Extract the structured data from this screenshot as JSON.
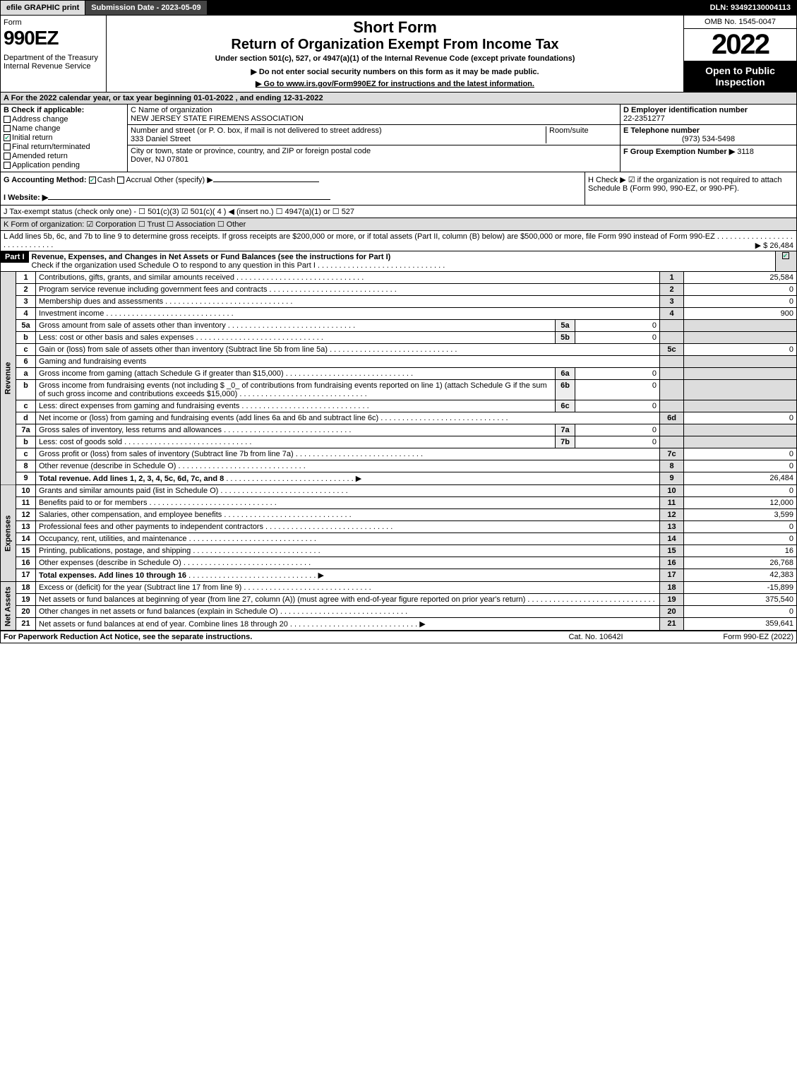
{
  "topbar": {
    "efile": "efile GRAPHIC print",
    "subdate": "Submission Date - 2023-05-09",
    "dln": "DLN: 93492130004113"
  },
  "header": {
    "form_label": "Form",
    "form_no": "990EZ",
    "dept": "Department of the Treasury\nInternal Revenue Service",
    "title1": "Short Form",
    "title2": "Return of Organization Exempt From Income Tax",
    "subtitle": "Under section 501(c), 527, or 4947(a)(1) of the Internal Revenue Code (except private foundations)",
    "note1": "▶ Do not enter social security numbers on this form as it may be made public.",
    "note2": "▶ Go to www.irs.gov/Form990EZ for instructions and the latest information.",
    "omb": "OMB No. 1545-0047",
    "year": "2022",
    "open": "Open to Public Inspection"
  },
  "A": "A  For the 2022 calendar year, or tax year beginning 01-01-2022 , and ending 12-31-2022",
  "B": {
    "label": "B  Check if applicable:",
    "items": [
      "Address change",
      "Name change",
      "Initial return",
      "Final return/terminated",
      "Amended return",
      "Application pending"
    ],
    "checked": [
      false,
      false,
      true,
      false,
      false,
      false
    ]
  },
  "C": {
    "label": "C Name of organization",
    "name": "NEW JERSEY STATE FIREMENS ASSOCIATION",
    "addr_label": "Number and street (or P. O. box, if mail is not delivered to street address)",
    "addr": "333 Daniel Street",
    "room_label": "Room/suite",
    "city_label": "City or town, state or province, country, and ZIP or foreign postal code",
    "city": "Dover, NJ  07801"
  },
  "D": {
    "label": "D Employer identification number",
    "value": "22-2351277"
  },
  "E": {
    "label": "E Telephone number",
    "value": "(973) 534-5498"
  },
  "F": {
    "label": "F Group Exemption Number  ▶",
    "value": "3118"
  },
  "G": {
    "label": "G Accounting Method:",
    "cash": "Cash",
    "accrual": "Accrual",
    "other": "Other (specify) ▶"
  },
  "H": "H   Check ▶ ☑ if the organization is not required to attach Schedule B (Form 990, 990-EZ, or 990-PF).",
  "I": "I Website: ▶",
  "J": "J Tax-exempt status (check only one) - ☐ 501(c)(3) ☑ 501(c)( 4 ) ◀ (insert no.) ☐ 4947(a)(1) or ☐ 527",
  "K": "K Form of organization: ☑ Corporation  ☐ Trust  ☐ Association  ☐ Other",
  "L": {
    "text": "L Add lines 5b, 6c, and 7b to line 9 to determine gross receipts. If gross receipts are $200,000 or more, or if total assets (Part II, column (B) below) are $500,000 or more, file Form 990 instead of Form 990-EZ",
    "amount": "▶ $ 26,484"
  },
  "part1": {
    "label": "Part I",
    "title": "Revenue, Expenses, and Changes in Net Assets or Fund Balances (see the instructions for Part I)",
    "check": "Check if the organization used Schedule O to respond to any question in this Part I"
  },
  "sections": {
    "revenue": "Revenue",
    "expenses": "Expenses",
    "netassets": "Net Assets"
  },
  "rows": [
    {
      "n": "1",
      "d": "Contributions, gifts, grants, and similar amounts received",
      "rn": "1",
      "rv": "25,584"
    },
    {
      "n": "2",
      "d": "Program service revenue including government fees and contracts",
      "rn": "2",
      "rv": "0"
    },
    {
      "n": "3",
      "d": "Membership dues and assessments",
      "rn": "3",
      "rv": "0"
    },
    {
      "n": "4",
      "d": "Investment income",
      "rn": "4",
      "rv": "900"
    },
    {
      "n": "5a",
      "d": "Gross amount from sale of assets other than inventory",
      "sl": "5a",
      "sv": "0"
    },
    {
      "n": "b",
      "d": "Less: cost or other basis and sales expenses",
      "sl": "5b",
      "sv": "0"
    },
    {
      "n": "c",
      "d": "Gain or (loss) from sale of assets other than inventory (Subtract line 5b from line 5a)",
      "rn": "5c",
      "rv": "0"
    },
    {
      "n": "6",
      "d": "Gaming and fundraising events"
    },
    {
      "n": "a",
      "d": "Gross income from gaming (attach Schedule G if greater than $15,000)",
      "sl": "6a",
      "sv": "0"
    },
    {
      "n": "b",
      "d": "Gross income from fundraising events (not including $ _0_ of contributions from fundraising events reported on line 1) (attach Schedule G if the sum of such gross income and contributions exceeds $15,000)",
      "sl": "6b",
      "sv": "0"
    },
    {
      "n": "c",
      "d": "Less: direct expenses from gaming and fundraising events",
      "sl": "6c",
      "sv": "0"
    },
    {
      "n": "d",
      "d": "Net income or (loss) from gaming and fundraising events (add lines 6a and 6b and subtract line 6c)",
      "rn": "6d",
      "rv": "0"
    },
    {
      "n": "7a",
      "d": "Gross sales of inventory, less returns and allowances",
      "sl": "7a",
      "sv": "0"
    },
    {
      "n": "b",
      "d": "Less: cost of goods sold",
      "sl": "7b",
      "sv": "0"
    },
    {
      "n": "c",
      "d": "Gross profit or (loss) from sales of inventory (Subtract line 7b from line 7a)",
      "rn": "7c",
      "rv": "0"
    },
    {
      "n": "8",
      "d": "Other revenue (describe in Schedule O)",
      "rn": "8",
      "rv": "0"
    },
    {
      "n": "9",
      "d": "Total revenue. Add lines 1, 2, 3, 4, 5c, 6d, 7c, and 8",
      "rn": "9",
      "rv": "26,484",
      "arrow": true,
      "bold": true
    }
  ],
  "exp_rows": [
    {
      "n": "10",
      "d": "Grants and similar amounts paid (list in Schedule O)",
      "rn": "10",
      "rv": "0"
    },
    {
      "n": "11",
      "d": "Benefits paid to or for members",
      "rn": "11",
      "rv": "12,000"
    },
    {
      "n": "12",
      "d": "Salaries, other compensation, and employee benefits",
      "rn": "12",
      "rv": "3,599"
    },
    {
      "n": "13",
      "d": "Professional fees and other payments to independent contractors",
      "rn": "13",
      "rv": "0"
    },
    {
      "n": "14",
      "d": "Occupancy, rent, utilities, and maintenance",
      "rn": "14",
      "rv": "0"
    },
    {
      "n": "15",
      "d": "Printing, publications, postage, and shipping",
      "rn": "15",
      "rv": "16"
    },
    {
      "n": "16",
      "d": "Other expenses (describe in Schedule O)",
      "rn": "16",
      "rv": "26,768"
    },
    {
      "n": "17",
      "d": "Total expenses. Add lines 10 through 16",
      "rn": "17",
      "rv": "42,383",
      "arrow": true,
      "bold": true
    }
  ],
  "na_rows": [
    {
      "n": "18",
      "d": "Excess or (deficit) for the year (Subtract line 17 from line 9)",
      "rn": "18",
      "rv": "-15,899"
    },
    {
      "n": "19",
      "d": "Net assets or fund balances at beginning of year (from line 27, column (A)) (must agree with end-of-year figure reported on prior year's return)",
      "rn": "19",
      "rv": "375,540"
    },
    {
      "n": "20",
      "d": "Other changes in net assets or fund balances (explain in Schedule O)",
      "rn": "20",
      "rv": "0"
    },
    {
      "n": "21",
      "d": "Net assets or fund balances at end of year. Combine lines 18 through 20",
      "rn": "21",
      "rv": "359,641",
      "arrow": true
    }
  ],
  "footer": {
    "l": "For Paperwork Reduction Act Notice, see the separate instructions.",
    "c": "Cat. No. 10642I",
    "r": "Form 990-EZ (2022)"
  },
  "colors": {
    "dark": "#000000",
    "grey": "#dddddd",
    "check": "#22aa77"
  }
}
